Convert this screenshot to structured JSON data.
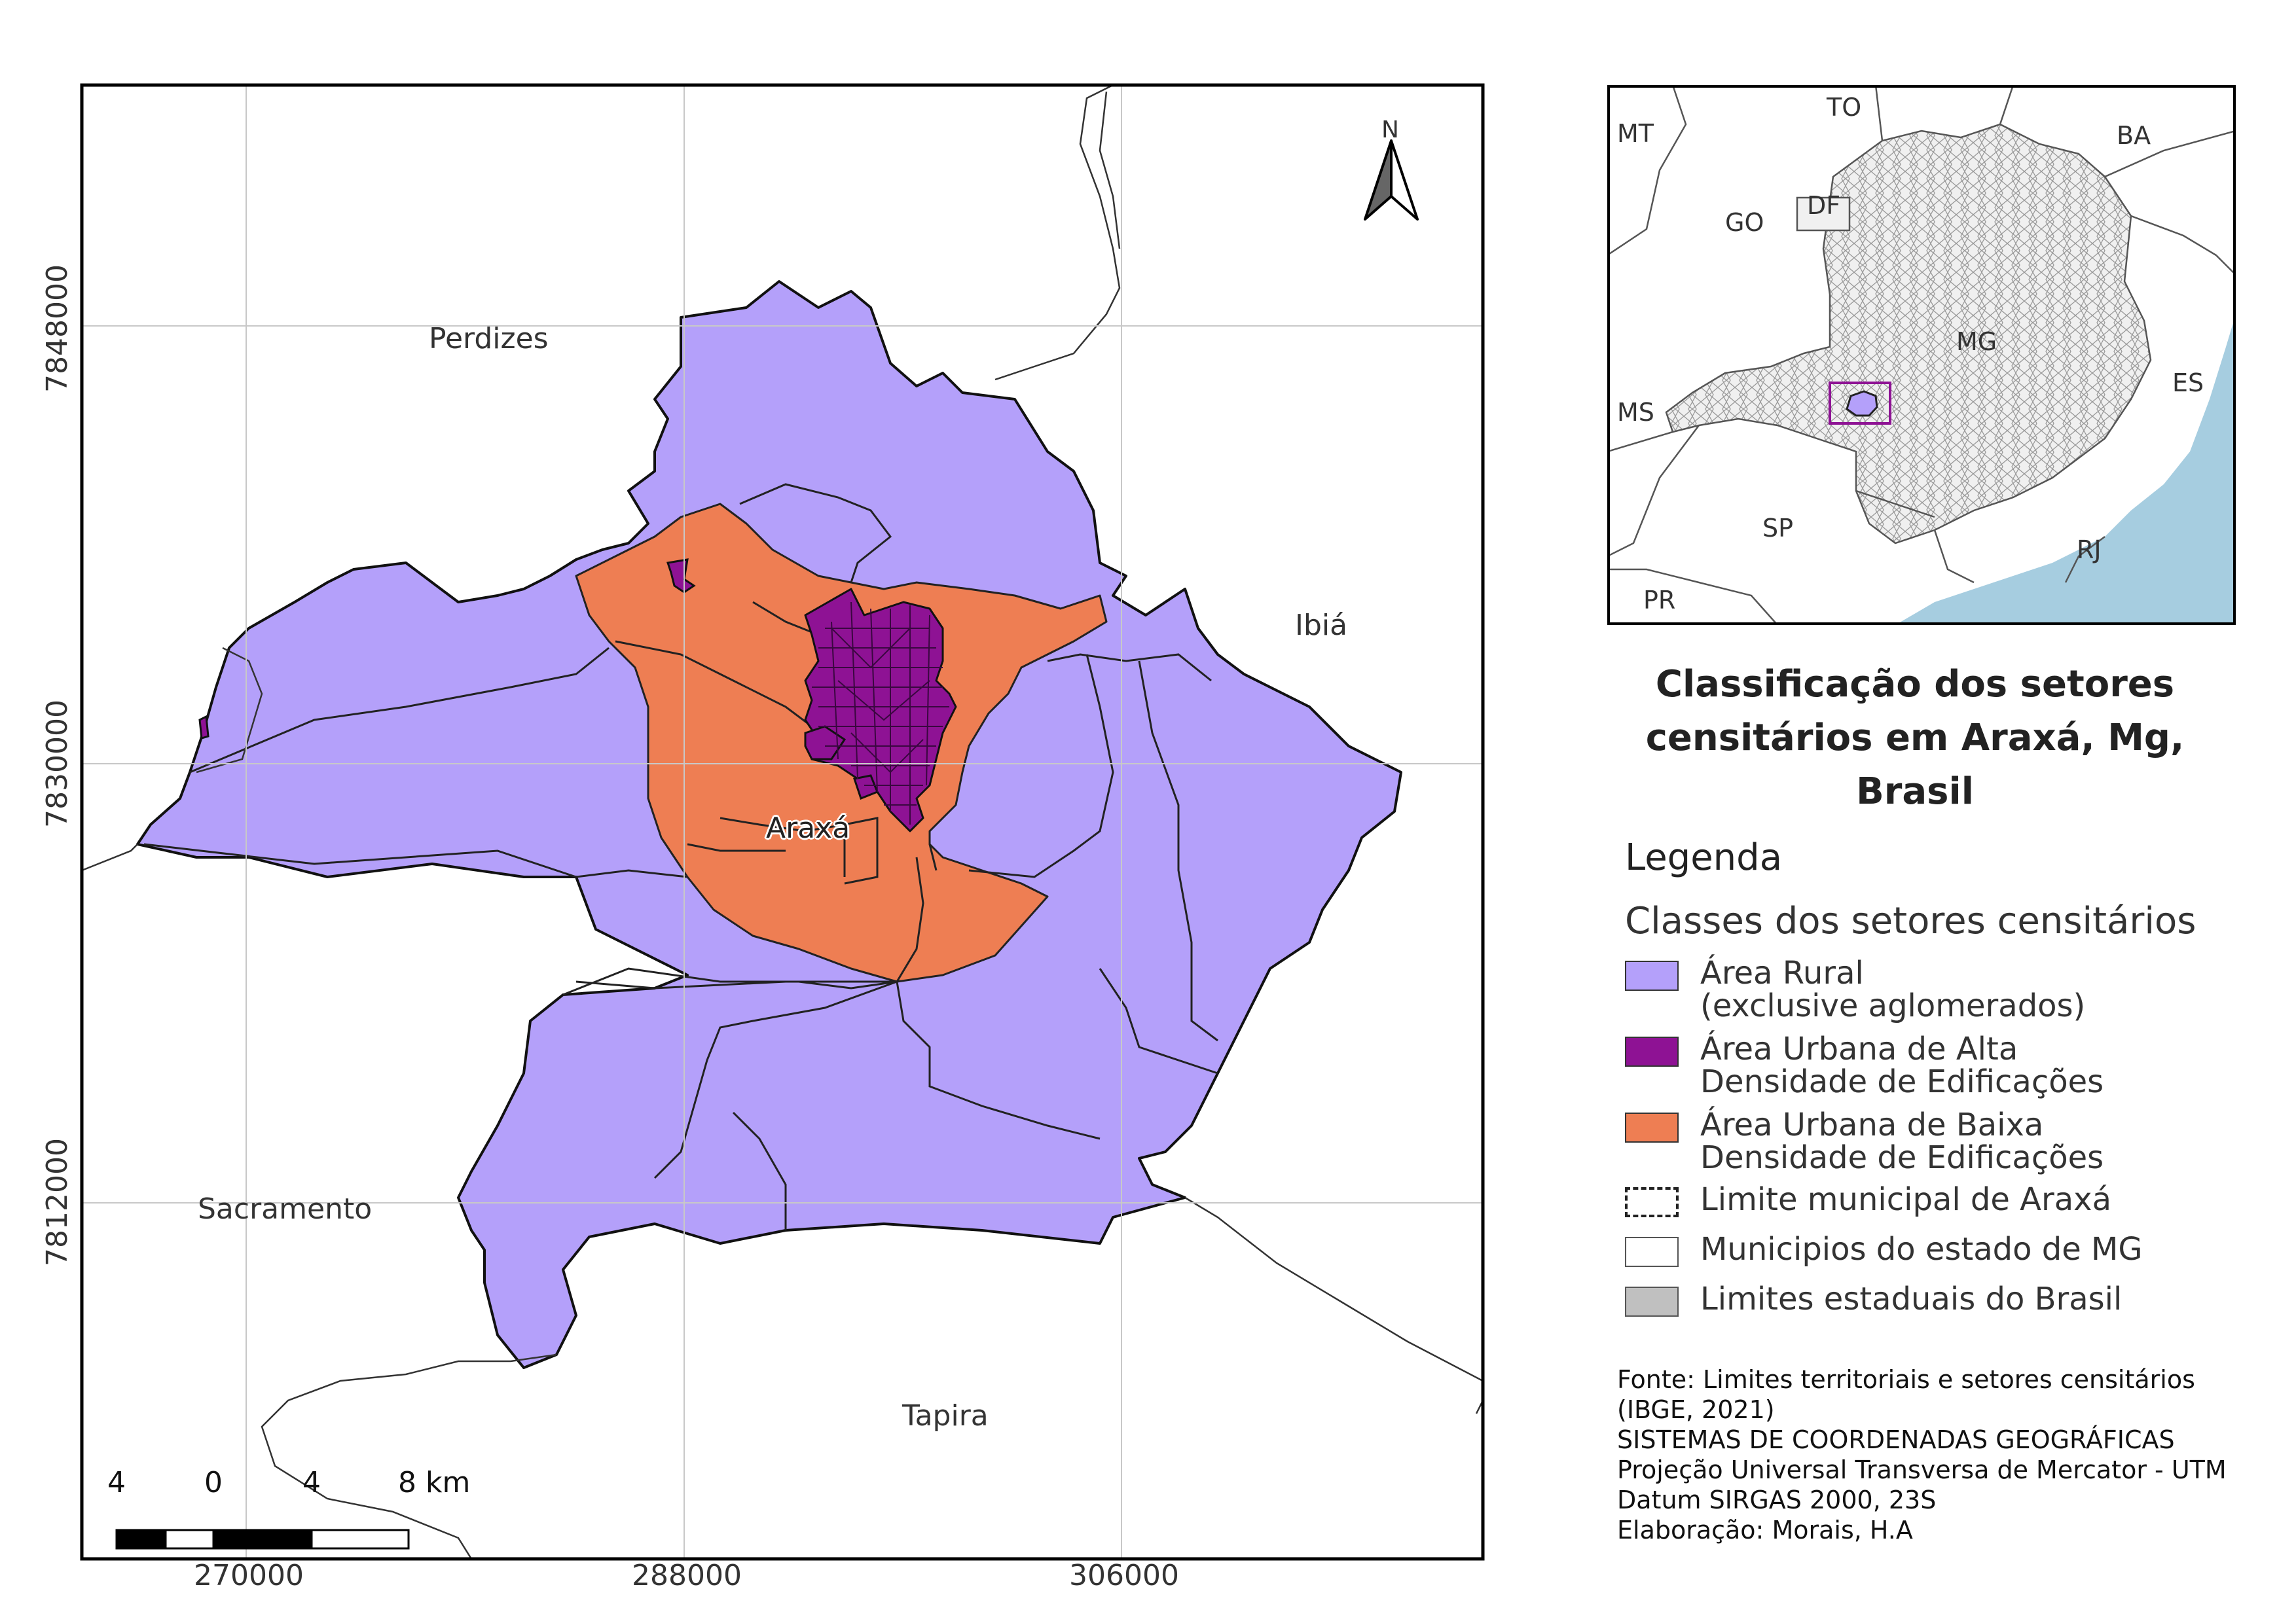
{
  "map": {
    "places": {
      "perdizes": "Perdizes",
      "ibia": "Ibiá",
      "sacramento": "Sacramento",
      "tapira": "Tapira",
      "araxa": "Araxá"
    },
    "north_label": "N",
    "x_ticks": [
      "270000",
      "288000",
      "306000"
    ],
    "y_ticks": [
      "7848000",
      "7830000",
      "7812000"
    ],
    "scale": {
      "labels": [
        "4",
        "0",
        "4",
        "8 km"
      ]
    },
    "colors": {
      "rural": "#b4a0fa",
      "urban_high": "#8e1294",
      "urban_low": "#ee7e53",
      "grid": "#c8c8c8",
      "frame": "#000000"
    }
  },
  "inset": {
    "labels": [
      "MT",
      "TO",
      "BA",
      "GO",
      "DF",
      "MG",
      "ES",
      "MS",
      "SP",
      "RJ",
      "PR"
    ],
    "colors": {
      "sea": "#a6cde0",
      "land": "#f0f0f0",
      "highlight": "#8e1294"
    }
  },
  "title": {
    "lines": [
      "Classificação dos setores",
      "censitários em Araxá, Mg,",
      "Brasil"
    ]
  },
  "legend": {
    "title": "Legenda",
    "subtitle": "Classes dos setores censitários",
    "items": [
      {
        "lines": [
          "Área Rural",
          "(exclusive aglomerados)"
        ],
        "color": "#b4a0fa"
      },
      {
        "lines": [
          "Área Urbana de Alta",
          "Densidade de Edificações"
        ],
        "color": "#8e1294"
      },
      {
        "lines": [
          "Área Urbana de Baixa",
          "Densidade de Edificações"
        ],
        "color": "#ee7e53"
      },
      {
        "lines": [
          "Limite municipal de Araxá"
        ],
        "color": "#ffffff"
      },
      {
        "lines": [
          "Municipios do estado de MG"
        ],
        "color": "#ffffff"
      },
      {
        "lines": [
          "Limites estaduais do Brasil"
        ],
        "color": "#c0c0c0"
      }
    ]
  },
  "source": {
    "lines": [
      "Fonte: Limites territoriais e setores censitários",
      "(IBGE, 2021)",
      "SISTEMAS DE COORDENADAS GEOGRÁFICAS",
      "Projeção Universal Transversa de Mercator - UTM",
      "Datum SIRGAS 2000, 23S",
      "Elaboração: Morais, H.A"
    ]
  }
}
